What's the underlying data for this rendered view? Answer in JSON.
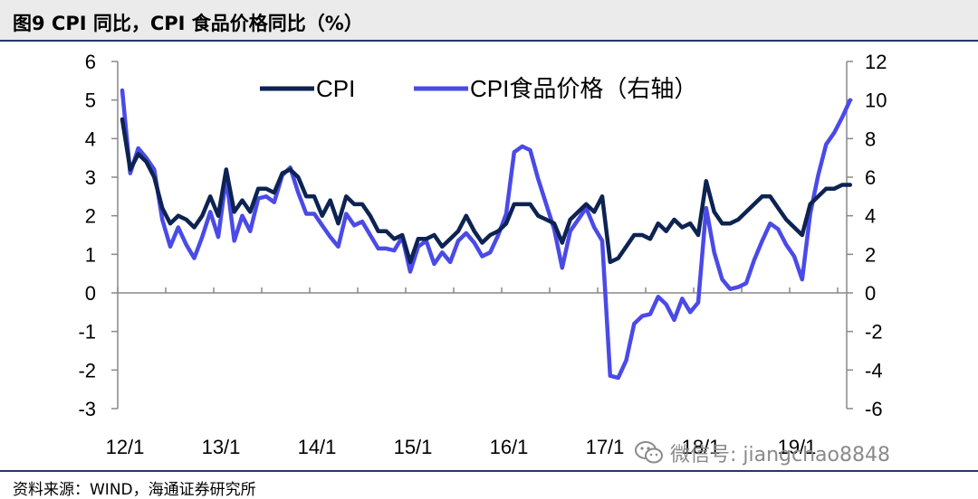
{
  "header": {
    "title": "图9 CPI 同比，CPI 食品价格同比（%）"
  },
  "footer": {
    "source": "资料来源：WIND，海通证券研究所"
  },
  "watermark": {
    "text": "微信号: jiangchao8848",
    "icon": "wechat-icon"
  },
  "colors": {
    "cpi": "#0d2352",
    "food": "#4a4ae8",
    "axis": "#888888",
    "header_bg": "#ebebeb",
    "rule": "#1f3a68"
  },
  "chart_data": {
    "type": "line",
    "x_start": "2012-01",
    "x_ticks": [
      "12/1",
      "13/1",
      "14/1",
      "15/1",
      "16/1",
      "17/1",
      "18/1",
      "19/1"
    ],
    "y_left": {
      "min": -3,
      "max": 6,
      "ticks": [
        6,
        5,
        4,
        3,
        2,
        1,
        0,
        -1,
        -2,
        -3
      ]
    },
    "y_right": {
      "min": -6,
      "max": 12,
      "ticks": [
        12,
        10,
        8,
        6,
        4,
        2,
        0,
        -2,
        -4,
        -6
      ]
    },
    "legend_position": "top",
    "series": [
      {
        "name": "CPI",
        "axis": "left",
        "values": [
          4.5,
          3.2,
          3.6,
          3.4,
          3.0,
          2.2,
          1.8,
          2.0,
          1.9,
          1.7,
          2.0,
          2.5,
          2.0,
          3.2,
          2.1,
          2.4,
          2.1,
          2.7,
          2.7,
          2.6,
          3.1,
          3.2,
          3.0,
          2.5,
          2.5,
          2.0,
          2.4,
          1.8,
          2.5,
          2.3,
          2.3,
          2.0,
          1.6,
          1.6,
          1.4,
          1.5,
          0.8,
          1.4,
          1.4,
          1.5,
          1.2,
          1.4,
          1.6,
          2.0,
          1.6,
          1.3,
          1.5,
          1.6,
          1.8,
          2.3,
          2.3,
          2.3,
          2.0,
          1.9,
          1.8,
          1.3,
          1.9,
          2.1,
          2.3,
          2.1,
          2.5,
          0.8,
          0.9,
          1.2,
          1.5,
          1.5,
          1.4,
          1.8,
          1.6,
          1.9,
          1.7,
          1.8,
          1.5,
          2.9,
          2.1,
          1.8,
          1.8,
          1.9,
          2.1,
          2.3,
          2.5,
          2.5,
          2.2,
          1.9,
          1.7,
          1.5,
          2.3,
          2.5,
          2.7,
          2.7,
          2.8,
          2.8
        ]
      },
      {
        "name": "CPI食品价格（右轴）",
        "axis": "right",
        "values": [
          10.5,
          6.2,
          7.5,
          7.0,
          6.4,
          3.8,
          2.4,
          3.4,
          2.5,
          1.8,
          2.9,
          4.2,
          2.9,
          6.0,
          2.7,
          4.0,
          3.2,
          4.9,
          5.0,
          4.7,
          6.1,
          6.5,
          5.2,
          4.1,
          4.1,
          3.5,
          2.9,
          2.4,
          4.1,
          3.5,
          3.7,
          3.0,
          2.3,
          2.3,
          2.2,
          2.9,
          1.1,
          2.4,
          2.7,
          1.5,
          2.1,
          1.6,
          2.7,
          3.1,
          2.6,
          1.9,
          2.1,
          3.0,
          4.1,
          7.3,
          7.6,
          7.4,
          5.9,
          4.6,
          3.3,
          1.3,
          3.2,
          3.8,
          4.4,
          3.4,
          2.7,
          -4.3,
          -4.4,
          -3.5,
          -1.6,
          -1.2,
          -1.1,
          -0.2,
          -0.6,
          -1.4,
          -0.3,
          -1.0,
          -0.5,
          4.4,
          2.1,
          0.7,
          0.2,
          0.3,
          0.5,
          1.7,
          2.7,
          3.6,
          3.3,
          2.5,
          1.9,
          0.7,
          4.1,
          6.1,
          7.7,
          8.3,
          9.1,
          10.0
        ]
      }
    ]
  }
}
